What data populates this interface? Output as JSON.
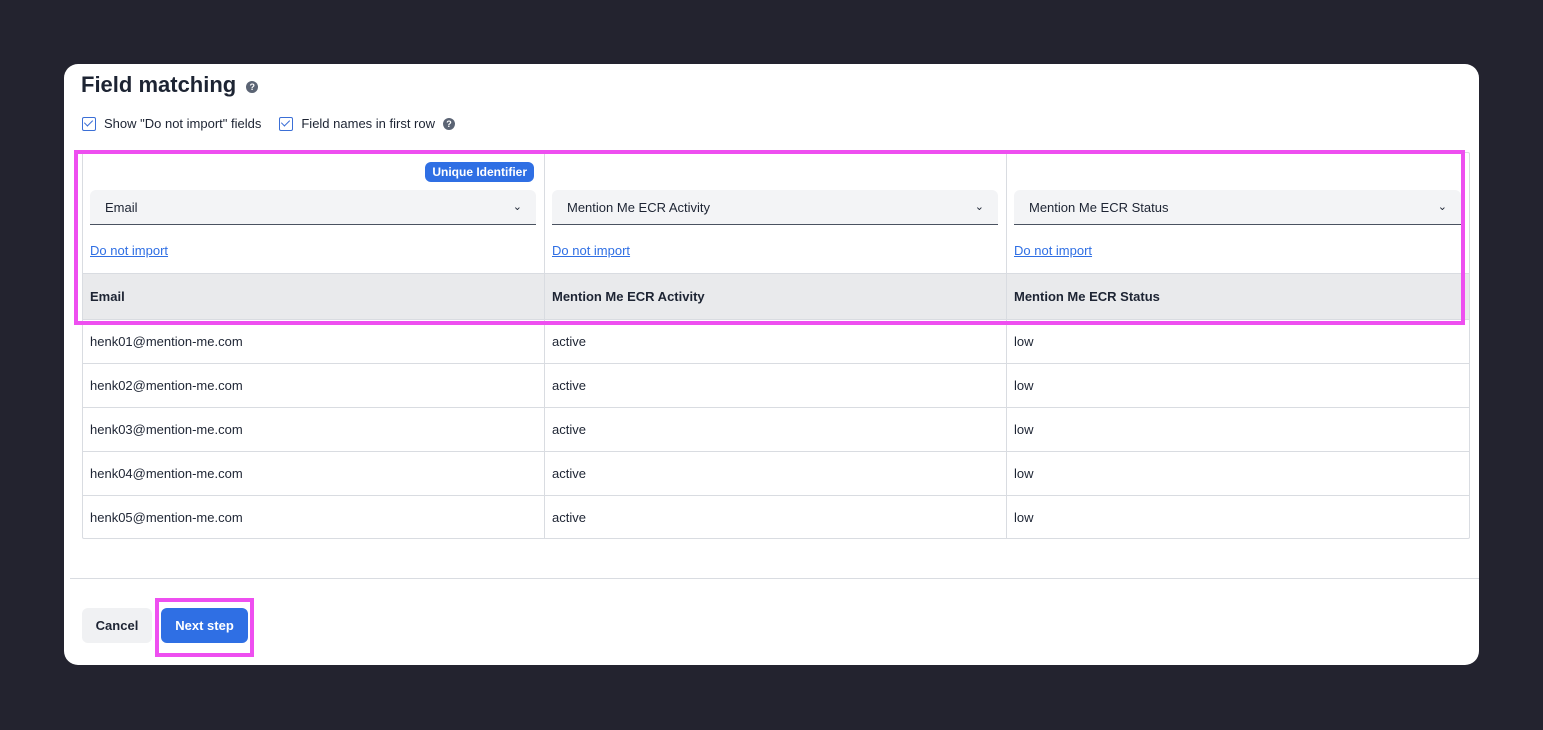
{
  "dialog": {
    "title": "Field matching",
    "help": "?",
    "options": [
      {
        "label": "Show \"Do not import\" fields",
        "checked": true
      },
      {
        "label": "Field names in first row",
        "checked": true
      }
    ]
  },
  "mapping": {
    "unique_badge": "Unique Identifier",
    "columns": [
      {
        "selected": "Email",
        "do_not_import": "Do not import",
        "header": "Email"
      },
      {
        "selected": "Mention Me ECR Activity",
        "do_not_import": "Do not import",
        "header": "Mention Me ECR Activity"
      },
      {
        "selected": "Mention Me ECR Status",
        "do_not_import": "Do not import",
        "header": "Mention Me ECR Status"
      }
    ],
    "rows": [
      [
        "henk01@mention-me.com",
        "active",
        "low"
      ],
      [
        "henk02@mention-me.com",
        "active",
        "low"
      ],
      [
        "henk03@mention-me.com",
        "active",
        "low"
      ],
      [
        "henk04@mention-me.com",
        "active",
        "low"
      ],
      [
        "henk05@mention-me.com",
        "active",
        "low"
      ]
    ]
  },
  "footer": {
    "cancel_label": "Cancel",
    "next_label": "Next step"
  },
  "colors": {
    "accent": "#2f6fe4",
    "highlight": "#ee4ff0",
    "backdrop": "#23232f"
  },
  "icons": {
    "help": "question-circle-icon",
    "dropdown": "chevron-down-icon",
    "checkbox": "check-icon"
  }
}
